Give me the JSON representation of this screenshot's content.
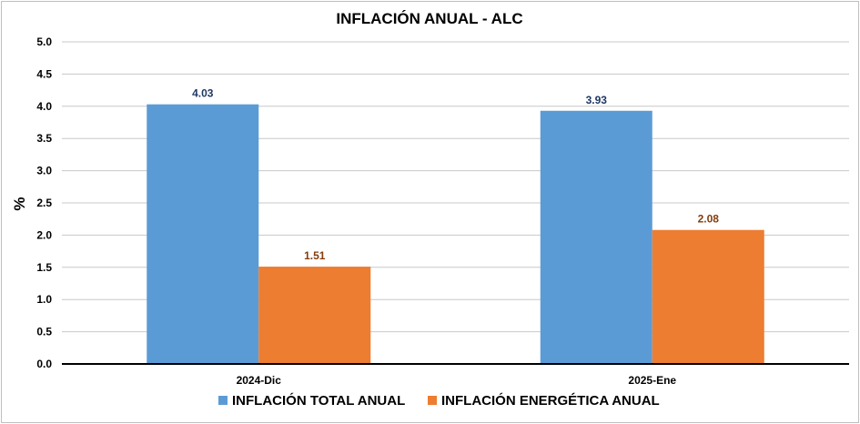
{
  "chart_data": {
    "type": "bar",
    "title": "INFLACIÓN ANUAL - ALC",
    "ylabel": "%",
    "xlabel": "",
    "ylim": [
      0,
      5
    ],
    "yticks": [
      "0.0",
      "0.5",
      "1.0",
      "1.5",
      "2.0",
      "2.5",
      "3.0",
      "3.5",
      "4.0",
      "4.5",
      "5.0"
    ],
    "categories": [
      "2024-Dic",
      "2025-Ene"
    ],
    "series": [
      {
        "name": "INFLACIÓN TOTAL ANUAL",
        "values": [
          4.03,
          3.93
        ],
        "labels": [
          "4.03",
          "3.93"
        ],
        "color": "#5b9bd5",
        "label_color": "#1f3864"
      },
      {
        "name": "INFLACIÓN ENERGÉTICA ANUAL",
        "values": [
          1.51,
          2.08
        ],
        "labels": [
          "1.51",
          "2.08"
        ],
        "color": "#ed7d31",
        "label_color": "#843c0c"
      }
    ],
    "grid": true,
    "legend": "bottom"
  }
}
